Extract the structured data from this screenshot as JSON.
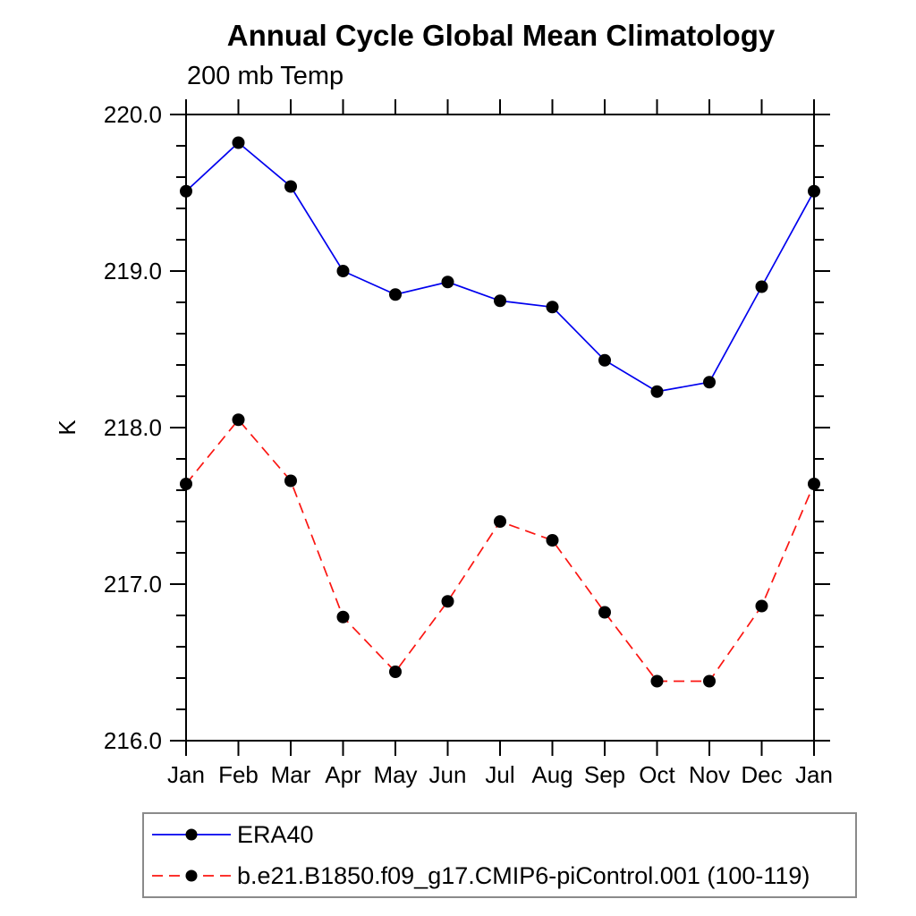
{
  "chart_data": {
    "type": "line",
    "title": "Annual Cycle Global Mean Climatology",
    "subtitle": "200 mb Temp",
    "ylabel": "K",
    "x": [
      "Jan",
      "Feb",
      "Mar",
      "Apr",
      "May",
      "Jun",
      "Jul",
      "Aug",
      "Sep",
      "Oct",
      "Nov",
      "Dec",
      "Jan"
    ],
    "series": [
      {
        "name": "ERA40",
        "color": "#0000ee",
        "line_style": "solid",
        "marker": "filled-circle",
        "marker_color": "#000000",
        "values": [
          219.51,
          219.82,
          219.54,
          219.0,
          218.85,
          218.93,
          218.81,
          218.77,
          218.43,
          218.23,
          218.29,
          218.9,
          219.51
        ]
      },
      {
        "name": "b.e21.B1850.f09_g17.CMIP6-piControl.001 (100-119)",
        "color": "#fb1511",
        "line_style": "dashed",
        "marker": "filled-circle",
        "marker_color": "#000000",
        "values": [
          217.64,
          218.05,
          217.66,
          216.79,
          216.44,
          216.89,
          217.4,
          217.28,
          216.82,
          216.38,
          216.38,
          216.86,
          217.64
        ]
      }
    ],
    "ylim": [
      216.0,
      220.0
    ],
    "y_major_step": 1.0,
    "y_minor_step": 0.2,
    "y_tick_labels": [
      "216.0",
      "217.0",
      "218.0",
      "219.0",
      "220.0"
    ],
    "grid": false,
    "tick_direction": "out",
    "legend_position": "bottom-left",
    "axis_color": "#000000"
  }
}
